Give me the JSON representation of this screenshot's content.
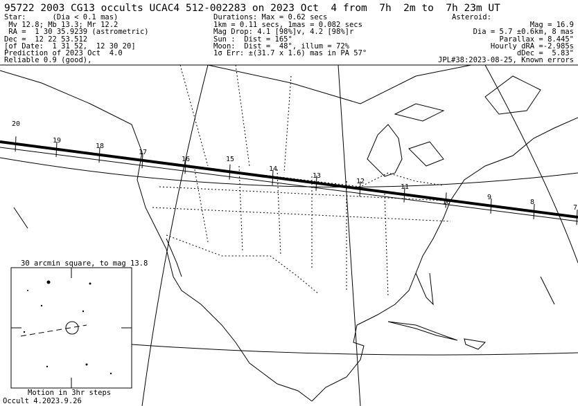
{
  "header": {
    "title": "95722 2003 CG13 occults UCAC4 512-002283 on 2023 Oct  4 from  7h  2m to  7h 23m UT",
    "left": [
      "Star:      (Dia < 0.1 mas)",
      " Mv 12.8; Mb 13.3; Mr 12.2",
      " RA =  1 30 35.9239 (astrometric)",
      "Dec =  12 22 53.512",
      "[of Date:  1 31 52,  12 30 20]",
      "Prediction of 2023 Oct  4.0",
      "Reliable 0.9 (good),"
    ],
    "middle": [
      "Durations: Max = 0.62 secs",
      "1km = 0.11 secs, 1mas = 0.082 secs",
      "Mag Drop: 4.1 [98%]v, 4.2 [98%]r",
      "Sun :  Dist = 165°",
      "Moon:  Dist =  48°, illum = 72%",
      "1σ Err: ±(31.7 x 1.6) mas in PA 57°"
    ],
    "right": [
      "Asteroid:",
      "Mag = 16.9",
      "Dia = 5.7 ±0.6km, 8 mas",
      "Parallax = 8.445\"",
      "Hourly dRA =-2.985s",
      "dDec =  5.83\"",
      "JPL#38:2023-08-25, Known errors"
    ]
  },
  "map": {
    "path_times": [
      "20",
      "19",
      "18",
      "17",
      "16",
      "15",
      "14",
      "13",
      "12",
      "11",
      "10",
      "9",
      "8",
      "7"
    ]
  },
  "inset": {
    "title": "30 arcmin square, to mag 13.8",
    "caption": "Motion in 3hr steps"
  },
  "footer": "Occult 4.2023.9.26"
}
